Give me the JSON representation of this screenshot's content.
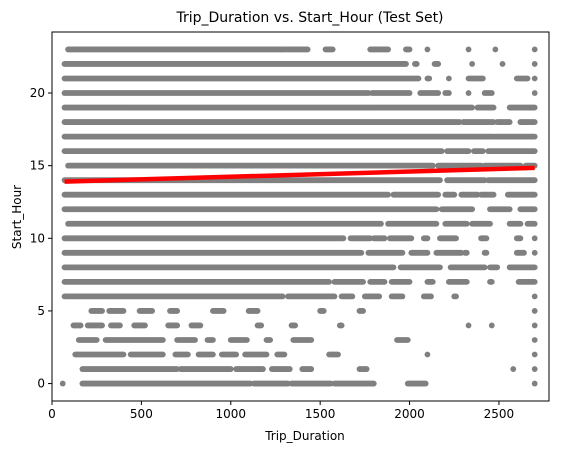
{
  "chart_data": {
    "type": "scatter",
    "title": "Trip_Duration vs. Start_Hour (Test Set)",
    "xlabel": "Trip_Duration",
    "ylabel": "Start_Hour",
    "xlim": [
      0,
      2780
    ],
    "ylim": [
      -1.2,
      24.2
    ],
    "xticks": [
      0,
      500,
      1000,
      1500,
      2000,
      2500
    ],
    "yticks": [
      0,
      5,
      10,
      15,
      20
    ],
    "grid": false,
    "legend": "none",
    "colors": {
      "points": "#808080",
      "fit": "#ff0000"
    },
    "hours": [
      {
        "hour": 0,
        "segments": [
          [
            60,
            60
          ],
          [
            170,
            1110
          ],
          [
            1130,
            1320
          ],
          [
            1340,
            1560
          ],
          [
            1580,
            1800
          ],
          [
            1990,
            2090
          ],
          [
            2700,
            2700
          ]
        ]
      },
      {
        "hour": 1,
        "segments": [
          [
            170,
            700
          ],
          [
            720,
            1000
          ],
          [
            1030,
            1180
          ],
          [
            1230,
            1330
          ],
          [
            1400,
            1450
          ],
          [
            1720,
            1760
          ],
          [
            2580,
            2580
          ],
          [
            2700,
            2700
          ]
        ]
      },
      {
        "hour": 2,
        "segments": [
          [
            130,
            400
          ],
          [
            440,
            620
          ],
          [
            690,
            760
          ],
          [
            820,
            900
          ],
          [
            950,
            1030
          ],
          [
            1080,
            1200
          ],
          [
            1260,
            1300
          ],
          [
            1550,
            1600
          ],
          [
            2100,
            2100
          ],
          [
            2700,
            2700
          ]
        ]
      },
      {
        "hour": 3,
        "segments": [
          [
            150,
            250
          ],
          [
            300,
            620
          ],
          [
            700,
            800
          ],
          [
            870,
            900
          ],
          [
            1000,
            1090
          ],
          [
            1200,
            1220
          ],
          [
            1350,
            1450
          ],
          [
            1930,
            1990
          ],
          [
            2700,
            2700
          ]
        ]
      },
      {
        "hour": 4,
        "segments": [
          [
            120,
            160
          ],
          [
            200,
            280
          ],
          [
            330,
            380
          ],
          [
            460,
            520
          ],
          [
            650,
            700
          ],
          [
            780,
            830
          ],
          [
            1150,
            1170
          ],
          [
            1340,
            1360
          ],
          [
            1610,
            1620
          ],
          [
            2330,
            2330
          ],
          [
            2460,
            2460
          ],
          [
            2700,
            2700
          ]
        ]
      },
      {
        "hour": 5,
        "segments": [
          [
            220,
            280
          ],
          [
            320,
            400
          ],
          [
            490,
            560
          ],
          [
            660,
            700
          ],
          [
            900,
            960
          ],
          [
            1100,
            1150
          ],
          [
            1500,
            1520
          ],
          [
            1720,
            1740
          ],
          [
            2700,
            2700
          ]
        ]
      },
      {
        "hour": 6,
        "segments": [
          [
            70,
            1290
          ],
          [
            1320,
            1580
          ],
          [
            1620,
            1680
          ],
          [
            1750,
            1830
          ],
          [
            1900,
            1960
          ],
          [
            2080,
            2120
          ],
          [
            2250,
            2260
          ],
          [
            2700,
            2700
          ]
        ]
      },
      {
        "hour": 7,
        "segments": [
          [
            70,
            1550
          ],
          [
            1580,
            1740
          ],
          [
            1780,
            1860
          ],
          [
            1900,
            2000
          ],
          [
            2100,
            2130
          ],
          [
            2220,
            2320
          ],
          [
            2450,
            2460
          ],
          [
            2610,
            2700
          ]
        ]
      },
      {
        "hour": 8,
        "segments": [
          [
            70,
            1910
          ],
          [
            1950,
            2170
          ],
          [
            2230,
            2420
          ],
          [
            2450,
            2490
          ],
          [
            2560,
            2700
          ]
        ]
      },
      {
        "hour": 9,
        "segments": [
          [
            70,
            1730
          ],
          [
            1770,
            1960
          ],
          [
            2010,
            2100
          ],
          [
            2150,
            2290
          ],
          [
            2310,
            2320
          ],
          [
            2420,
            2430
          ],
          [
            2600,
            2640
          ],
          [
            2700,
            2700
          ]
        ]
      },
      {
        "hour": 10,
        "segments": [
          [
            70,
            1630
          ],
          [
            1670,
            1780
          ],
          [
            1800,
            1860
          ],
          [
            1890,
            2010
          ],
          [
            2080,
            2100
          ],
          [
            2170,
            2260
          ],
          [
            2400,
            2430
          ],
          [
            2600,
            2620
          ],
          [
            2700,
            2700
          ]
        ]
      },
      {
        "hour": 11,
        "segments": [
          [
            90,
            1840
          ],
          [
            1880,
            2150
          ],
          [
            2200,
            2320
          ],
          [
            2350,
            2450
          ],
          [
            2560,
            2620
          ],
          [
            2660,
            2700
          ]
        ]
      },
      {
        "hour": 12,
        "segments": [
          [
            70,
            2150
          ],
          [
            2180,
            2350
          ],
          [
            2450,
            2560
          ],
          [
            2620,
            2700
          ]
        ]
      },
      {
        "hour": 13,
        "segments": [
          [
            70,
            1880
          ],
          [
            1910,
            2160
          ],
          [
            2200,
            2250
          ],
          [
            2290,
            2380
          ],
          [
            2400,
            2470
          ],
          [
            2550,
            2700
          ]
        ]
      },
      {
        "hour": 14,
        "segments": [
          [
            70,
            2170
          ],
          [
            2210,
            2420
          ],
          [
            2440,
            2700
          ]
        ]
      },
      {
        "hour": 15,
        "segments": [
          [
            90,
            2130
          ],
          [
            2160,
            2400
          ],
          [
            2420,
            2620
          ],
          [
            2650,
            2700
          ]
        ]
      },
      {
        "hour": 16,
        "segments": [
          [
            70,
            2180
          ],
          [
            2210,
            2330
          ],
          [
            2360,
            2410
          ],
          [
            2440,
            2700
          ]
        ]
      },
      {
        "hour": 17,
        "segments": [
          [
            70,
            2470
          ],
          [
            2480,
            2700
          ]
        ]
      },
      {
        "hour": 18,
        "segments": [
          [
            70,
            2280
          ],
          [
            2300,
            2470
          ],
          [
            2490,
            2560
          ],
          [
            2620,
            2700
          ]
        ]
      },
      {
        "hour": 19,
        "segments": [
          [
            70,
            2350
          ],
          [
            2380,
            2470
          ],
          [
            2560,
            2700
          ]
        ]
      },
      {
        "hour": 20,
        "segments": [
          [
            70,
            1770
          ],
          [
            1790,
            2000
          ],
          [
            2060,
            2160
          ],
          [
            2200,
            2220
          ],
          [
            2330,
            2330
          ],
          [
            2420,
            2460
          ],
          [
            2700,
            2700
          ]
        ]
      },
      {
        "hour": 21,
        "segments": [
          [
            70,
            2050
          ],
          [
            2100,
            2110
          ],
          [
            2220,
            2220
          ],
          [
            2330,
            2410
          ],
          [
            2600,
            2660
          ],
          [
            2700,
            2700
          ]
        ]
      },
      {
        "hour": 22,
        "segments": [
          [
            70,
            1980
          ],
          [
            2030,
            2040
          ],
          [
            2140,
            2160
          ],
          [
            2350,
            2350
          ],
          [
            2520,
            2520
          ],
          [
            2700,
            2700
          ]
        ]
      },
      {
        "hour": 23,
        "segments": [
          [
            90,
            1310
          ],
          [
            1320,
            1430
          ],
          [
            1530,
            1570
          ],
          [
            1780,
            1880
          ],
          [
            1980,
            2000
          ],
          [
            2100,
            2100
          ],
          [
            2330,
            2330
          ],
          [
            2480,
            2480
          ],
          [
            2700,
            2700
          ]
        ]
      }
    ],
    "fit_line": {
      "x": [
        70,
        2700
      ],
      "y": [
        13.9,
        14.85
      ]
    }
  }
}
